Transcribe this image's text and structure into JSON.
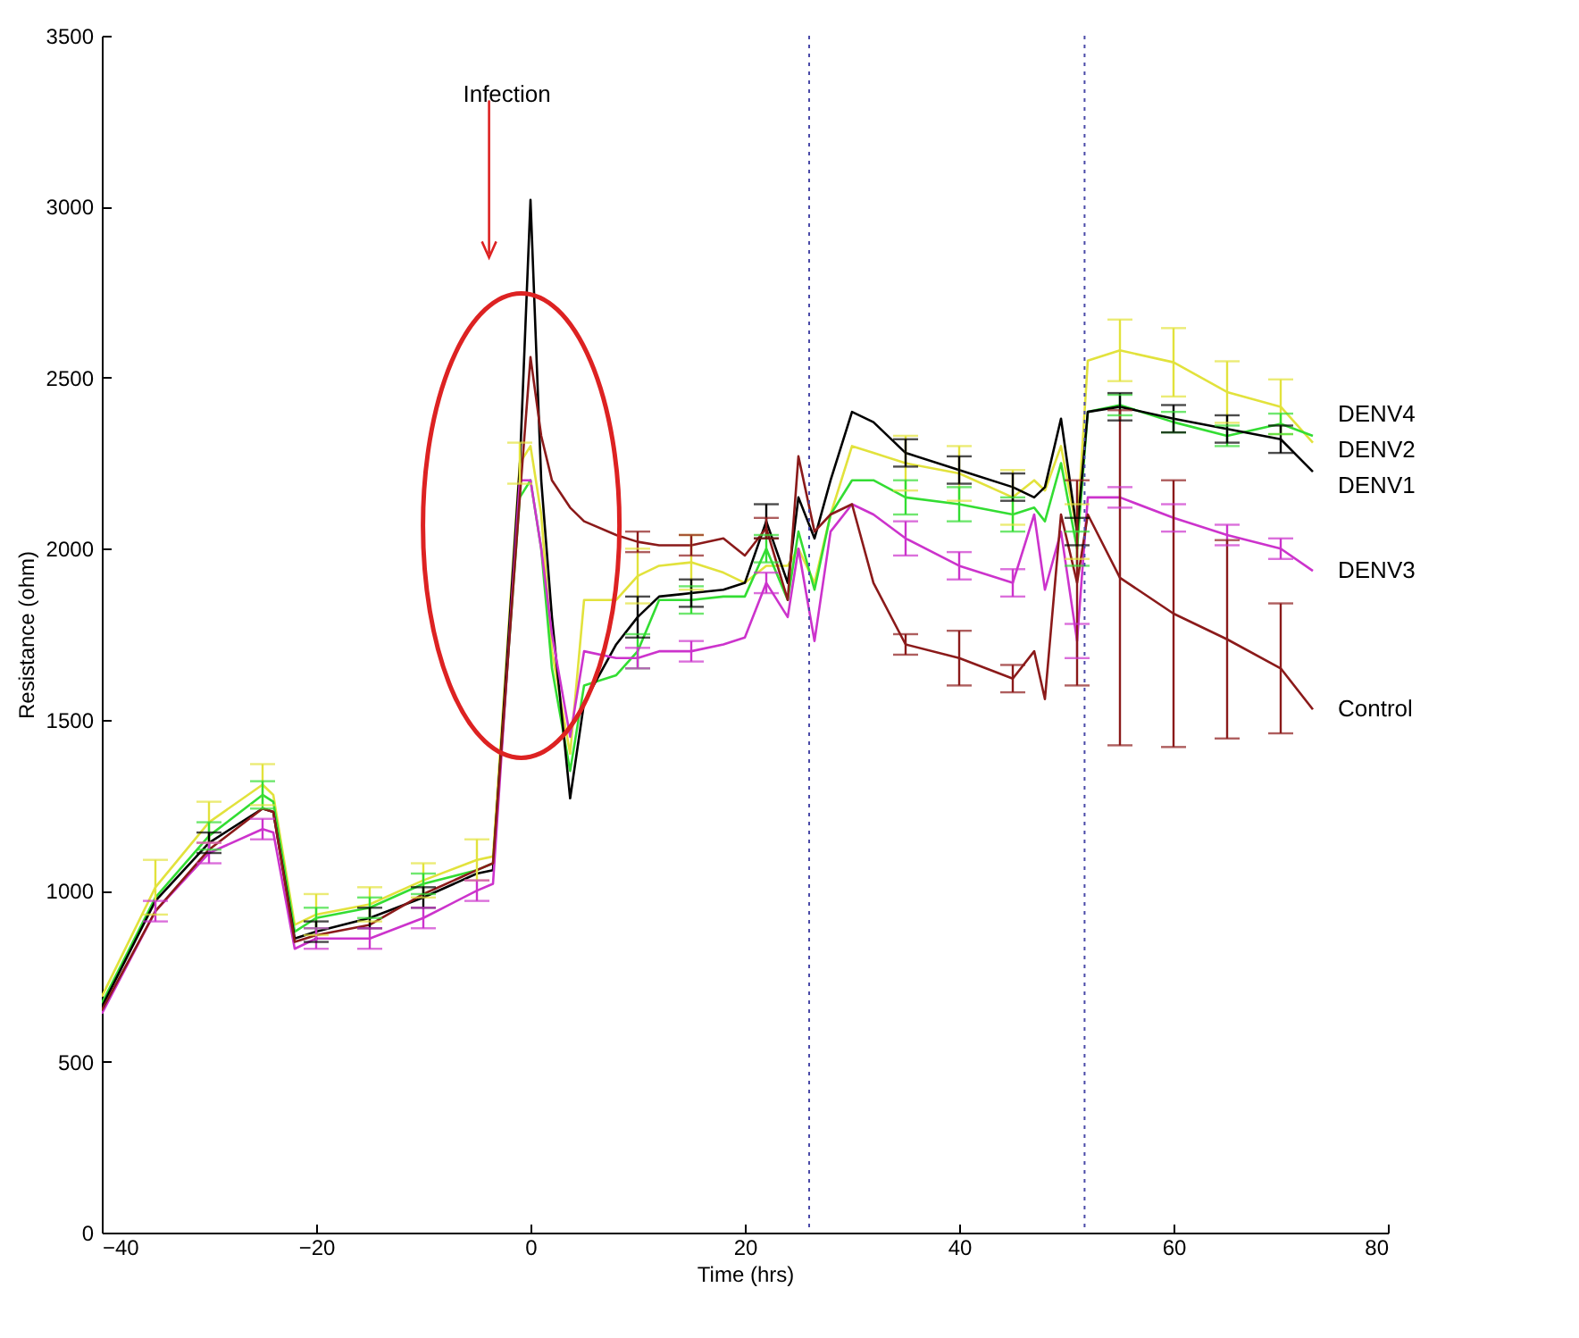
{
  "chart_data": {
    "type": "line",
    "xlabel": "Time (hrs)",
    "ylabel": "Resistance (ohm)",
    "x": [
      -40,
      -35,
      -30,
      -25,
      -24,
      -22,
      -20,
      -15,
      -10,
      -5,
      -3.5,
      -1,
      0,
      1,
      2,
      3.7,
      5,
      8,
      10,
      12,
      15,
      18,
      20,
      22,
      24,
      25,
      26.5,
      28,
      30,
      32,
      35,
      40,
      45,
      47,
      48,
      49.5,
      51,
      52,
      55,
      60,
      65,
      70,
      73
    ],
    "series": [
      {
        "name": "DENV4",
        "color": "#e2e23c",
        "values": [
          690,
          1010,
          1200,
          1310,
          1280,
          900,
          930,
          960,
          1030,
          1090,
          1100,
          2250,
          2300,
          2100,
          1700,
          1400,
          1850,
          1850,
          1920,
          1950,
          1960,
          1930,
          1900,
          1950,
          1950,
          2000,
          1900,
          2100,
          2300,
          2280,
          2250,
          2220,
          2150,
          2200,
          2170,
          2300,
          2050,
          2550,
          2580,
          2545,
          2458,
          2415,
          2310
        ],
        "errors": [
          null,
          80,
          60,
          60,
          null,
          null,
          60,
          50,
          50,
          60,
          null,
          60,
          null,
          null,
          null,
          null,
          null,
          null,
          80,
          null,
          80,
          null,
          null,
          null,
          null,
          null,
          null,
          null,
          null,
          null,
          80,
          80,
          80,
          null,
          null,
          null,
          80,
          null,
          90,
          100,
          90,
          80,
          null
        ]
      },
      {
        "name": "DENV2",
        "color": "#33dd33",
        "values": [
          670,
          980,
          1160,
          1280,
          1260,
          880,
          920,
          950,
          1020,
          1060,
          1080,
          2150,
          2200,
          2000,
          1650,
          1350,
          1600,
          1630,
          1700,
          1850,
          1850,
          1860,
          1860,
          2000,
          1850,
          2050,
          1880,
          2100,
          2200,
          2200,
          2150,
          2130,
          2100,
          2120,
          2080,
          2250,
          2000,
          2400,
          2420,
          2370,
          2330,
          2365,
          2330
        ],
        "errors": [
          null,
          null,
          40,
          40,
          null,
          null,
          30,
          30,
          30,
          null,
          null,
          null,
          null,
          null,
          null,
          null,
          null,
          null,
          50,
          null,
          40,
          null,
          null,
          40,
          null,
          null,
          null,
          null,
          null,
          null,
          50,
          50,
          50,
          null,
          null,
          null,
          50,
          null,
          30,
          30,
          30,
          30,
          null
        ]
      },
      {
        "name": "DENV1",
        "color": "#000000",
        "values": [
          660,
          970,
          1140,
          1240,
          1230,
          860,
          880,
          920,
          980,
          1050,
          1060,
          2240,
          3020,
          2200,
          1800,
          1270,
          1550,
          1720,
          1800,
          1860,
          1870,
          1880,
          1900,
          2080,
          1900,
          2150,
          2030,
          2200,
          2400,
          2370,
          2280,
          2230,
          2180,
          2150,
          2180,
          2380,
          2050,
          2400,
          2415,
          2380,
          2350,
          2320,
          2225
        ],
        "errors": [
          null,
          null,
          30,
          null,
          null,
          null,
          30,
          30,
          30,
          null,
          null,
          null,
          null,
          null,
          null,
          null,
          null,
          null,
          60,
          null,
          40,
          null,
          null,
          50,
          null,
          null,
          null,
          null,
          null,
          null,
          40,
          40,
          40,
          null,
          null,
          null,
          40,
          null,
          40,
          40,
          40,
          40,
          null
        ]
      },
      {
        "name": "DENV3",
        "color": "#cc33cc",
        "values": [
          640,
          940,
          1110,
          1180,
          1170,
          830,
          860,
          860,
          920,
          1000,
          1020,
          2200,
          2200,
          2000,
          1750,
          1450,
          1700,
          1680,
          1680,
          1700,
          1700,
          1720,
          1740,
          1900,
          1800,
          2000,
          1730,
          2050,
          2130,
          2100,
          2030,
          1950,
          1900,
          2100,
          1880,
          2050,
          1730,
          2150,
          2150,
          2090,
          2040,
          2000,
          1935
        ],
        "errors": [
          null,
          30,
          30,
          30,
          null,
          null,
          30,
          30,
          30,
          30,
          null,
          null,
          null,
          null,
          null,
          null,
          null,
          null,
          30,
          null,
          30,
          null,
          null,
          30,
          null,
          null,
          null,
          null,
          null,
          null,
          50,
          40,
          40,
          null,
          null,
          null,
          50,
          null,
          30,
          40,
          30,
          30,
          null
        ]
      },
      {
        "name": "Control",
        "color": "#8b1a1a",
        "values": [
          650,
          940,
          1120,
          1240,
          1230,
          850,
          870,
          900,
          990,
          1060,
          1080,
          2150,
          2560,
          2330,
          2200,
          2120,
          2080,
          2040,
          2020,
          2010,
          2010,
          2030,
          1980,
          2060,
          1850,
          2270,
          2050,
          2100,
          2130,
          1900,
          1720,
          1680,
          1620,
          1700,
          1560,
          2100,
          1900,
          2100,
          1915,
          1810,
          1735,
          1650,
          1530
        ],
        "errors": [
          null,
          null,
          null,
          null,
          null,
          null,
          null,
          null,
          null,
          null,
          null,
          null,
          null,
          null,
          null,
          null,
          null,
          null,
          30,
          null,
          30,
          null,
          null,
          30,
          null,
          null,
          null,
          null,
          null,
          null,
          30,
          80,
          40,
          null,
          null,
          null,
          300,
          null,
          490,
          390,
          290,
          190,
          null
        ]
      }
    ],
    "xlim": [
      -40,
      80
    ],
    "xticks": [
      -40,
      -20,
      0,
      20,
      40,
      60,
      80
    ],
    "ylim": [
      0,
      3500
    ],
    "yticks": [
      0,
      500,
      1000,
      1500,
      2000,
      2500,
      3000,
      3500
    ],
    "ref_lines": [
      {
        "axis": "x",
        "value": 26,
        "color": "#4a4aa8",
        "line_style": "dotted"
      },
      {
        "axis": "x",
        "value": 51.7,
        "color": "#4a4aa8",
        "line_style": "dotted"
      }
    ],
    "annotations": [
      "Infection"
    ],
    "grid": false,
    "marker": "none",
    "line_style": "solid"
  }
}
